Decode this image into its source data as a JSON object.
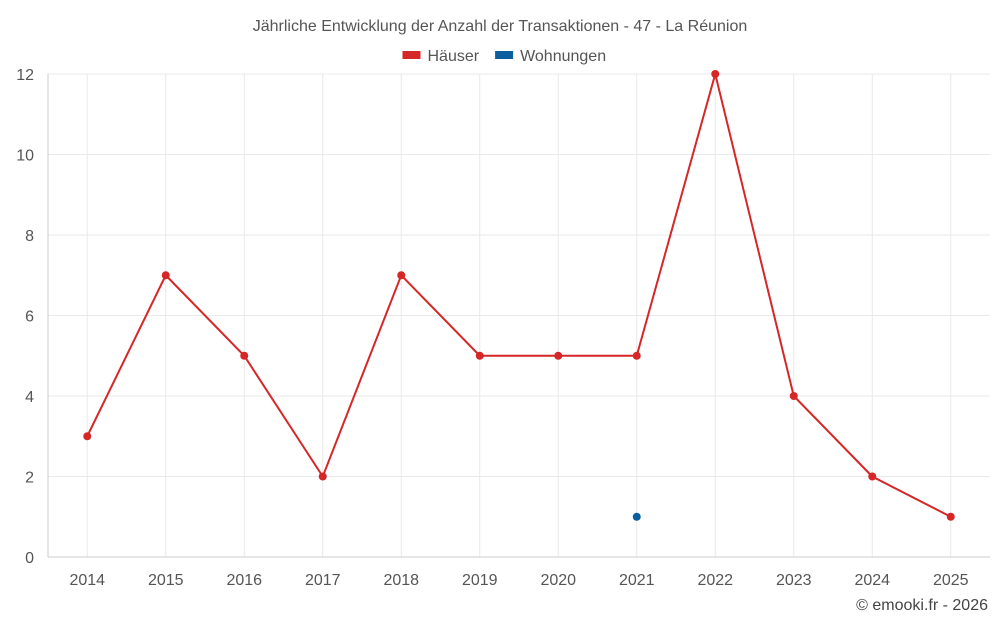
{
  "chart_data": {
    "type": "line",
    "title": "Jährliche Entwicklung der Anzahl der Transaktionen - 47 - La Réunion",
    "x": [
      "2014",
      "2015",
      "2016",
      "2017",
      "2018",
      "2019",
      "2020",
      "2021",
      "2022",
      "2023",
      "2024",
      "2025"
    ],
    "series": [
      {
        "name": "Häuser",
        "color": "#d62728",
        "values": [
          3,
          7,
          5,
          2,
          7,
          5,
          5,
          5,
          12,
          4,
          2,
          1
        ]
      },
      {
        "name": "Wohnungen",
        "color": "#0b5f9e",
        "values": [
          null,
          null,
          null,
          null,
          null,
          null,
          null,
          1,
          null,
          null,
          null,
          null
        ]
      }
    ],
    "ylim": [
      0,
      12
    ],
    "yticks": [
      "0",
      "2",
      "4",
      "6",
      "8",
      "10",
      "12"
    ],
    "grid": true,
    "legend": "top-center"
  },
  "footer": "© emooki.fr - 2026"
}
